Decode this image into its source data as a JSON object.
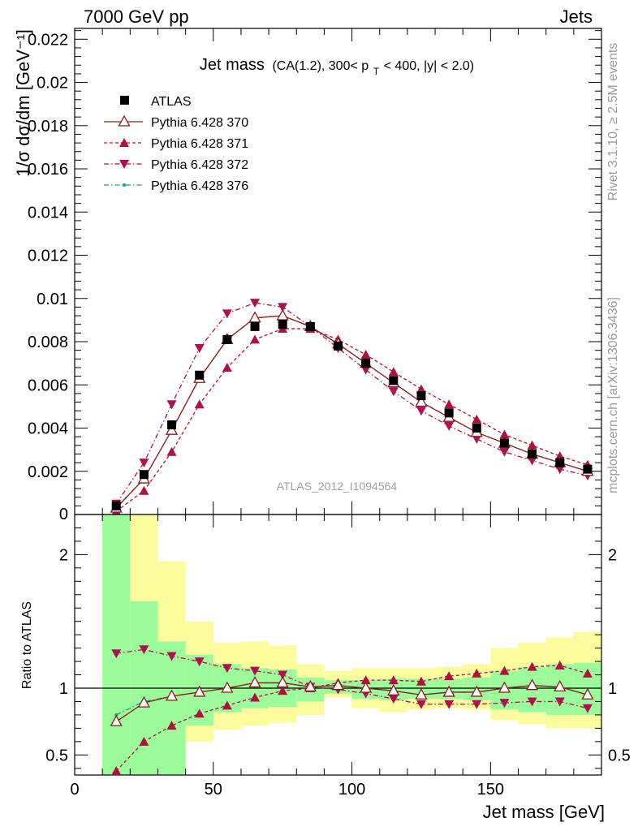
{
  "header": {
    "left": "7000 GeV pp",
    "right": "Jets",
    "rivet": "Rivet 3.1.10, ≥ 2.5M events",
    "mcplots": "mcplots.cern.ch [arXiv:1306.3436]"
  },
  "plot_title": {
    "main": "Jet mass",
    "cuts_a": "(CA(1.2), 300< p",
    "cuts_sub": "T",
    "cuts_b": " < 400, |y| < 2.0)"
  },
  "watermark": "ATLAS_2012_I1094564",
  "ylabel_main": "1/σ dσ/dm [GeV⁻¹]",
  "ylabel_ratio": "Ratio to ATLAS",
  "xlabel": "Jet mass [GeV]",
  "colors": {
    "atlas": "#000000",
    "p370": "#8b1a1a",
    "p371": "#b0103f",
    "p372": "#b0104f",
    "p376": "#14a07a",
    "band_inner": "#9cfc9c",
    "band_outer": "#fcfc9c"
  },
  "chart_data": [
    {
      "type": "line",
      "xlim": [
        0,
        190
      ],
      "ylim": [
        0,
        0.0225
      ],
      "x_ticks": [
        0,
        50,
        100,
        150
      ],
      "y_ticks": [
        0.002,
        0.004,
        0.006,
        0.008,
        0.01,
        0.012,
        0.014,
        0.016,
        0.018,
        0.02,
        0.022
      ],
      "y_tick_labels": [
        "0.002",
        "0.004",
        "0.006",
        "0.008",
        "0.01",
        "0.012",
        "0.014",
        "0.016",
        "0.018",
        "0.02",
        "0.022"
      ],
      "y_zero_label": "0",
      "x": [
        15,
        25,
        35,
        45,
        55,
        65,
        75,
        85,
        95,
        105,
        115,
        125,
        135,
        145,
        155,
        165,
        175,
        185
      ],
      "bin_edges": [
        10,
        20,
        30,
        40,
        50,
        60,
        70,
        80,
        90,
        100,
        110,
        120,
        130,
        140,
        150,
        160,
        170,
        180,
        190
      ],
      "series": [
        {
          "name": "ATLAS",
          "key": "atlas",
          "marker": "square",
          "line": "none",
          "values": [
            0.0004,
            0.00185,
            0.00415,
            0.00645,
            0.0081,
            0.0087,
            0.0088,
            0.0087,
            0.0078,
            0.007,
            0.0062,
            0.0055,
            0.0047,
            0.004,
            0.0033,
            0.0028,
            0.0024,
            0.0021
          ]
        },
        {
          "name": "Pythia 6.428 370",
          "key": "p370",
          "marker": "triangle-up-open",
          "line": "solid",
          "values": [
            0.0003,
            0.00165,
            0.0039,
            0.0063,
            0.0081,
            0.0091,
            0.0092,
            0.0087,
            0.0079,
            0.007,
            0.0061,
            0.0052,
            0.0045,
            0.0038,
            0.0033,
            0.0028,
            0.0024,
            0.002
          ]
        },
        {
          "name": "Pythia 6.428 371",
          "key": "p371",
          "marker": "triangle-up",
          "line": "dash",
          "values": [
            0.00015,
            0.0011,
            0.0029,
            0.0051,
            0.0068,
            0.0081,
            0.0086,
            0.0086,
            0.0081,
            0.0074,
            0.0066,
            0.0058,
            0.0051,
            0.0044,
            0.0037,
            0.0032,
            0.0027,
            0.0023
          ]
        },
        {
          "name": "Pythia 6.428 372",
          "key": "p372",
          "marker": "triangle-down",
          "line": "dashdot",
          "values": [
            0.0005,
            0.0024,
            0.0051,
            0.0077,
            0.0093,
            0.0098,
            0.0096,
            0.0087,
            0.0077,
            0.0067,
            0.0057,
            0.0048,
            0.0041,
            0.0035,
            0.0029,
            0.0025,
            0.0021,
            0.0018
          ]
        },
        {
          "name": "Pythia 6.428 376",
          "key": "p376",
          "marker": "dot",
          "line": "dashdot",
          "values": [
            0.00033,
            0.00165,
            0.0039,
            0.0063,
            0.0081,
            0.0091,
            0.0092,
            0.0087,
            0.0079,
            0.007,
            0.0061,
            0.0052,
            0.0045,
            0.0038,
            0.0033,
            0.0028,
            0.0024,
            0.002
          ]
        }
      ]
    },
    {
      "type": "line",
      "xlim": [
        0,
        190
      ],
      "ylim": [
        0.35,
        2.3
      ],
      "y_ticks": [
        0.5,
        1,
        2
      ],
      "y_tick_labels": [
        "0.5",
        "1",
        "2"
      ],
      "x": [
        15,
        25,
        35,
        45,
        55,
        65,
        75,
        85,
        95,
        105,
        115,
        125,
        135,
        145,
        155,
        165,
        175,
        185
      ],
      "bands": {
        "inner": {
          "lo": [
            0.35,
            0.35,
            0.35,
            0.72,
            0.82,
            0.85,
            0.86,
            0.9,
            0.96,
            0.92,
            0.91,
            0.92,
            0.92,
            0.91,
            0.84,
            0.82,
            0.8,
            0.8
          ],
          "hi": [
            2.3,
            1.65,
            1.35,
            1.25,
            1.18,
            1.15,
            1.14,
            1.08,
            1.06,
            1.06,
            1.07,
            1.07,
            1.07,
            1.08,
            1.13,
            1.16,
            1.18,
            1.19
          ]
        },
        "outer": {
          "lo": [
            0.35,
            0.35,
            0.35,
            0.6,
            0.69,
            0.72,
            0.74,
            0.8,
            0.93,
            0.85,
            0.82,
            0.84,
            0.85,
            0.84,
            0.76,
            0.73,
            0.7,
            0.7
          ],
          "hi": [
            2.3,
            2.3,
            1.95,
            1.5,
            1.34,
            1.35,
            1.32,
            1.18,
            1.13,
            1.15,
            1.15,
            1.15,
            1.16,
            1.18,
            1.3,
            1.34,
            1.38,
            1.42
          ]
        }
      },
      "series": [
        {
          "name": "Pythia 6.428 370",
          "key": "p370",
          "marker": "triangle-up-open",
          "line": "solid",
          "values": [
            0.75,
            0.89,
            0.94,
            0.97,
            1.0,
            1.04,
            1.04,
            1.01,
            1.02,
            1.0,
            0.98,
            0.95,
            0.97,
            0.97,
            1.0,
            1.02,
            1.01,
            0.95
          ]
        },
        {
          "name": "Pythia 6.428 371",
          "key": "p371",
          "marker": "triangle-up",
          "line": "dash",
          "values": [
            0.38,
            0.6,
            0.72,
            0.81,
            0.87,
            0.93,
            0.98,
            1.0,
            1.04,
            1.06,
            1.06,
            1.05,
            1.09,
            1.11,
            1.13,
            1.16,
            1.17,
            1.11
          ]
        },
        {
          "name": "Pythia 6.428 372",
          "key": "p372",
          "marker": "triangle-down",
          "line": "dashdot",
          "values": [
            1.26,
            1.29,
            1.24,
            1.2,
            1.15,
            1.13,
            1.1,
            1.01,
            0.99,
            0.96,
            0.92,
            0.88,
            0.88,
            0.88,
            0.89,
            0.9,
            0.9,
            0.85
          ]
        },
        {
          "name": "Pythia 6.428 376",
          "key": "p376",
          "marker": "dot",
          "line": "dashdot",
          "values": [
            0.8,
            0.9,
            0.94,
            0.97,
            1.0,
            1.04,
            1.04,
            1.01,
            1.02,
            1.0,
            0.98,
            0.95,
            0.97,
            0.97,
            1.0,
            1.02,
            1.01,
            0.95
          ]
        }
      ]
    }
  ]
}
